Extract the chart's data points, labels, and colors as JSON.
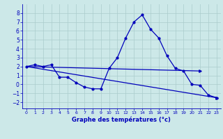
{
  "xlabel": "Graphe des températures (°c)",
  "background_color": "#cce8e8",
  "grid_color": "#aacccc",
  "line_color": "#0000bb",
  "xlim": [
    -0.5,
    23.5
  ],
  "ylim": [
    -2.7,
    9.0
  ],
  "yticks": [
    -2,
    -1,
    0,
    1,
    2,
    3,
    4,
    5,
    6,
    7,
    8
  ],
  "xticks": [
    0,
    1,
    2,
    3,
    4,
    5,
    6,
    7,
    8,
    9,
    10,
    11,
    12,
    13,
    14,
    15,
    16,
    17,
    18,
    19,
    20,
    21,
    22,
    23
  ],
  "series_main": {
    "x": [
      0,
      1,
      2,
      3,
      4,
      5,
      6,
      7,
      8,
      9,
      10,
      11,
      12,
      13,
      14,
      15,
      16,
      17,
      18,
      19,
      20,
      21,
      22,
      23
    ],
    "y": [
      2.0,
      2.2,
      2.0,
      2.2,
      0.8,
      0.8,
      0.2,
      -0.3,
      -0.5,
      -0.5,
      1.8,
      3.0,
      5.2,
      7.0,
      7.8,
      6.2,
      5.2,
      3.2,
      1.8,
      1.5,
      0.0,
      -0.1,
      -1.2,
      -1.5
    ]
  },
  "series_line1": {
    "x": [
      0,
      21
    ],
    "y": [
      2.0,
      1.5
    ]
  },
  "series_line2": {
    "x": [
      0,
      23
    ],
    "y": [
      2.0,
      -1.5
    ]
  }
}
